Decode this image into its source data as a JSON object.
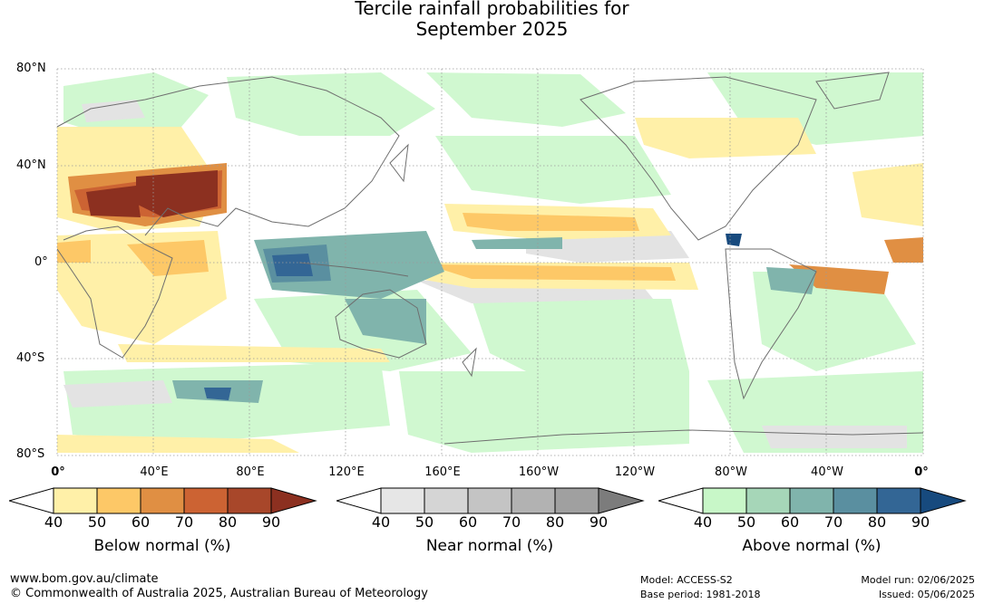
{
  "title": {
    "line1": "Tercile rainfall probabilities for",
    "line2": "September 2025"
  },
  "map": {
    "lat_labels": [
      "80°N",
      "40°N",
      "0°",
      "40°S",
      "80°S"
    ],
    "lon_labels": [
      "0°",
      "40°E",
      "80°E",
      "120°E",
      "160°E",
      "160°W",
      "120°W",
      "80°W",
      "40°W",
      "0°"
    ],
    "grid": true,
    "projection": "equirectangular"
  },
  "legends": [
    {
      "title": "Below normal (%)",
      "ticks": [
        "40",
        "50",
        "60",
        "70",
        "80",
        "90"
      ],
      "colors": [
        "#fff0a8",
        "#fdc867",
        "#e08f43",
        "#cc6333",
        "#a8472a",
        "#8c3020"
      ]
    },
    {
      "title": "Near normal (%)",
      "ticks": [
        "40",
        "50",
        "60",
        "70",
        "80",
        "90"
      ],
      "colors": [
        "#e6e6e6",
        "#d5d5d5",
        "#c4c4c4",
        "#b2b2b2",
        "#a0a0a0",
        "#7c7c7c"
      ]
    },
    {
      "title": "Above normal (%)",
      "ticks": [
        "40",
        "50",
        "60",
        "70",
        "80",
        "90"
      ],
      "colors": [
        "#c8f7c8",
        "#a6d6b8",
        "#80b4ac",
        "#5a8fa0",
        "#336695",
        "#174a7e"
      ]
    }
  ],
  "footer": {
    "url": "www.bom.gov.au/climate",
    "copyright": "© Commonwealth of Australia 2025, Australian Bureau of Meteorology",
    "model": "Model: ACCESS-S2",
    "base_period": "Base period: 1981-2018",
    "model_run": "Model run: 02/06/2025",
    "issued": "Issued: 05/06/2025"
  },
  "colors": {
    "coastline": "#6e6e6e",
    "grid": "#9a9a9a",
    "background_light_green": "#e4f8e2"
  }
}
